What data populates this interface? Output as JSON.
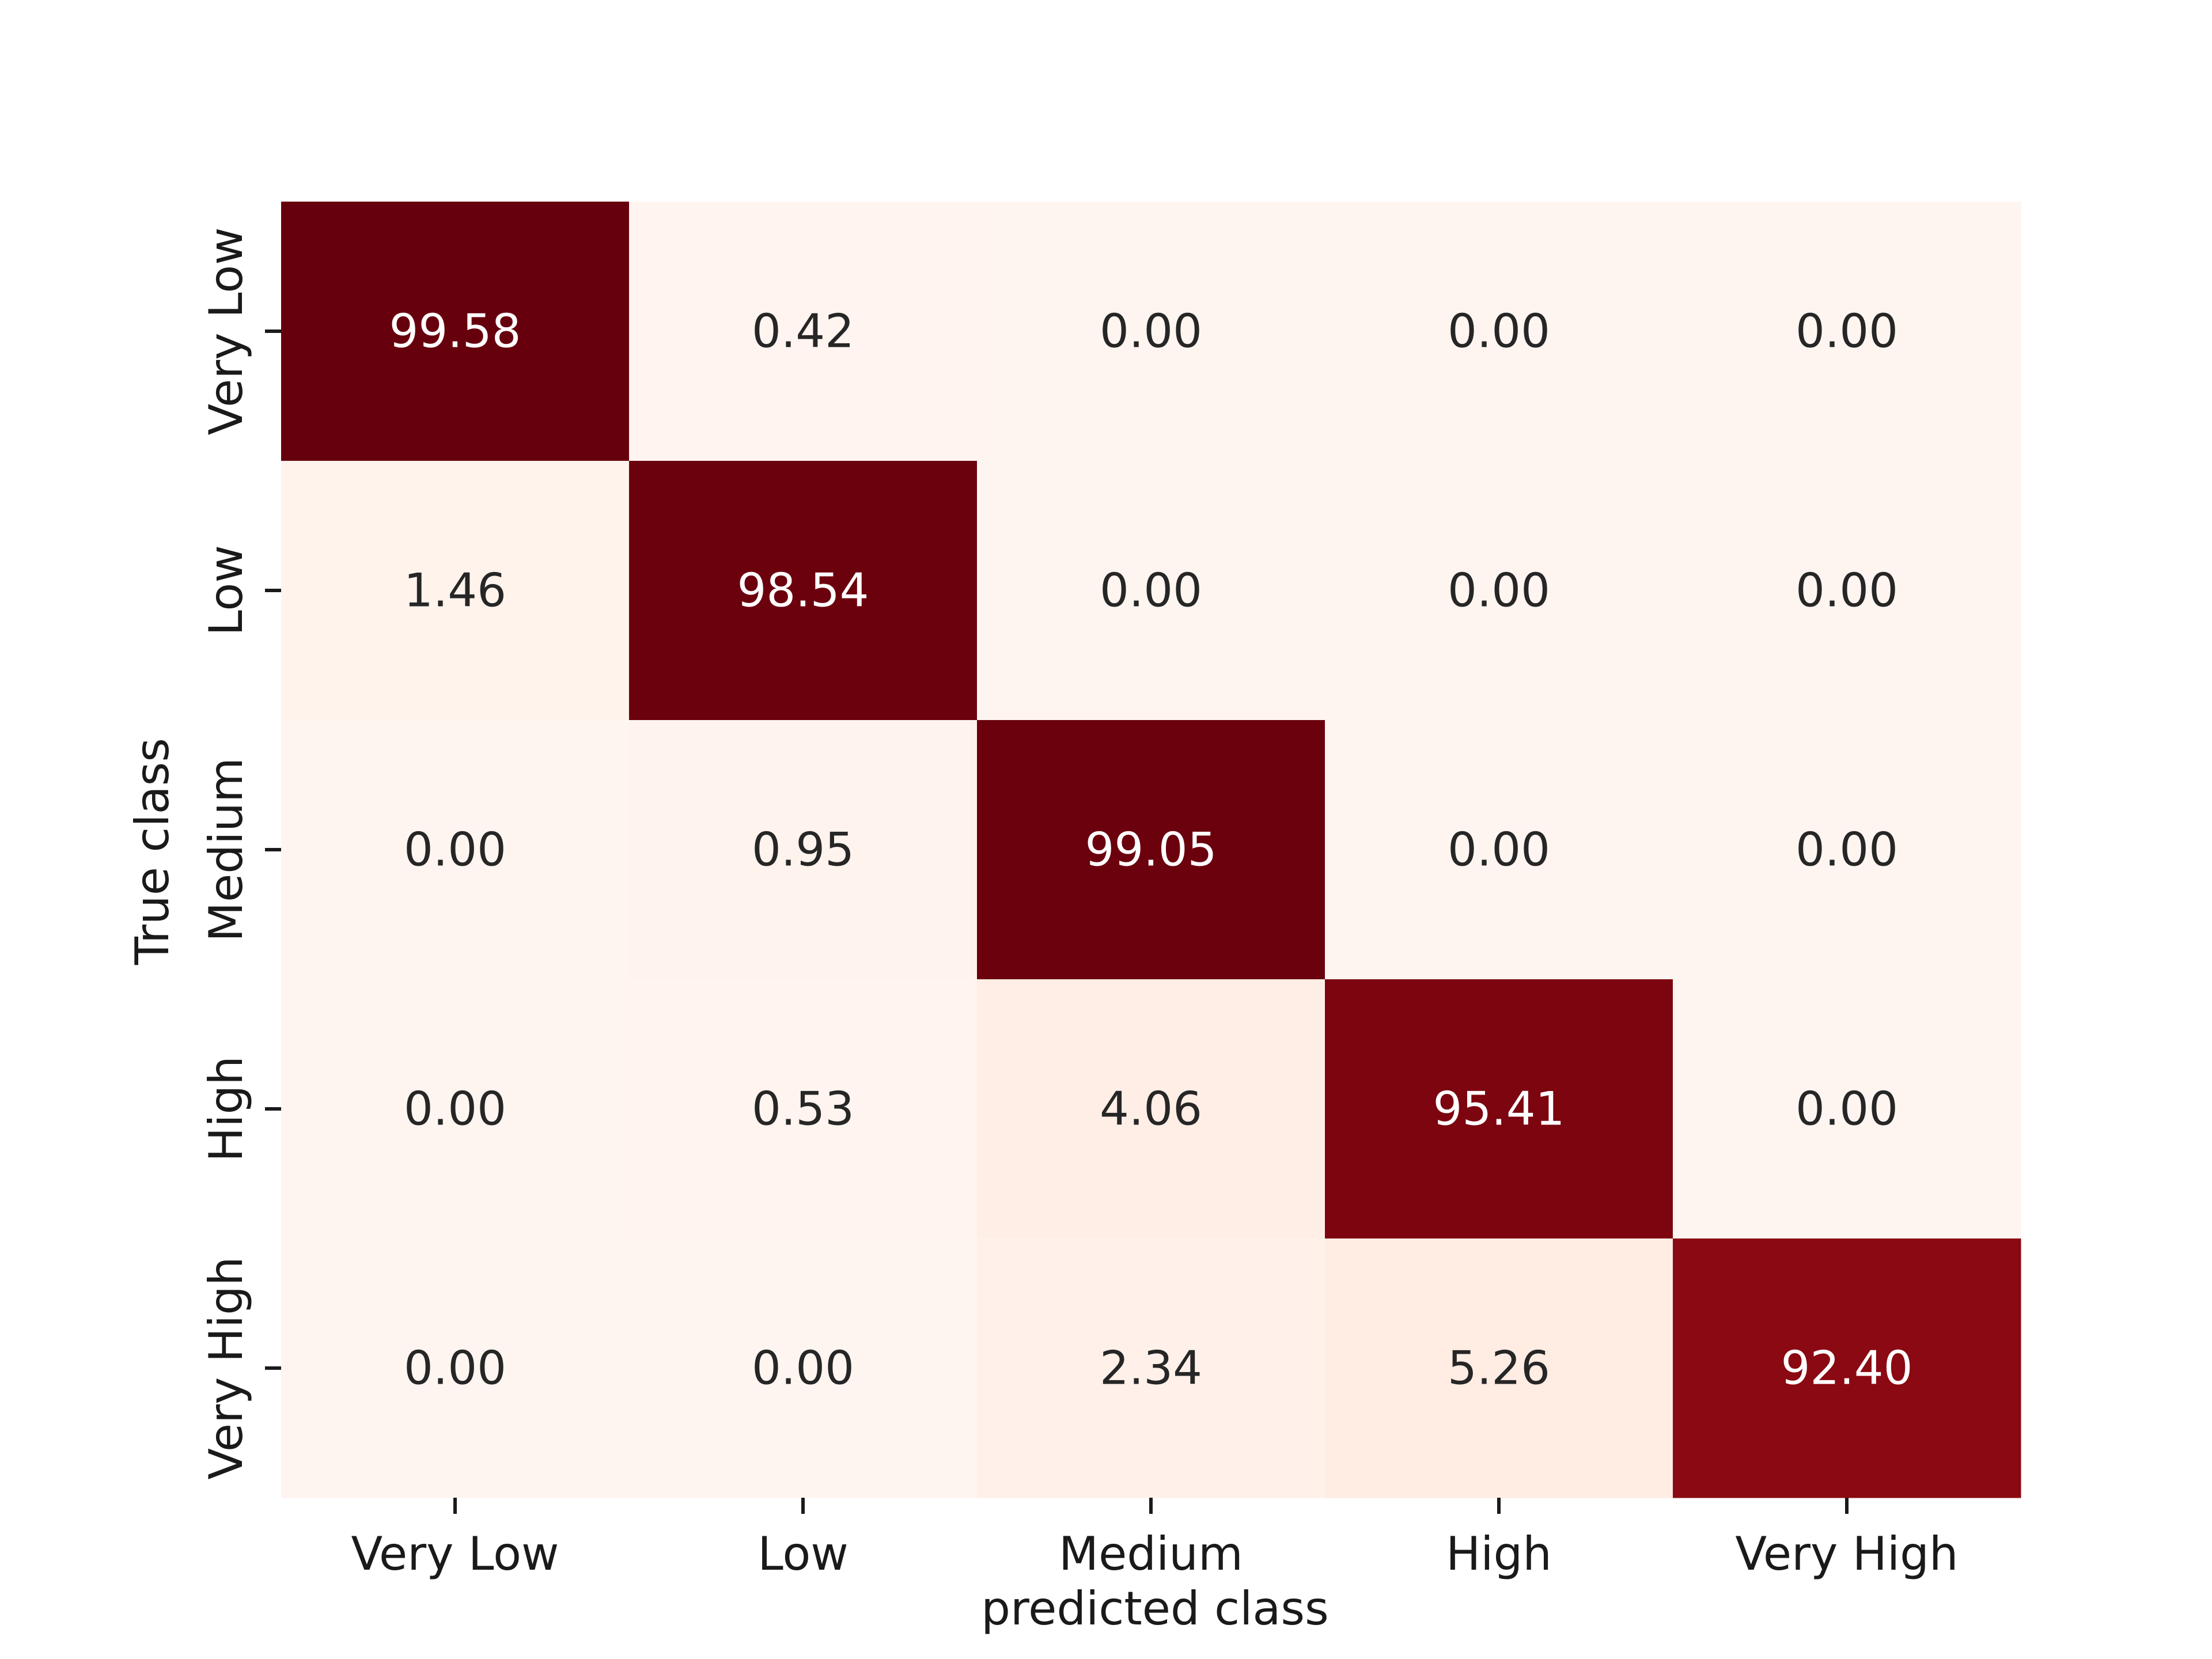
{
  "chart_data": {
    "type": "heatmap",
    "title": "",
    "xlabel": "predicted class",
    "ylabel": "True class",
    "x_categories": [
      "Very Low",
      "Low",
      "Medium",
      "High",
      "Very High"
    ],
    "y_categories": [
      "Very Low",
      "Low",
      "Medium",
      "High",
      "Very High"
    ],
    "values": [
      [
        99.58,
        0.42,
        0.0,
        0.0,
        0.0
      ],
      [
        1.46,
        98.54,
        0.0,
        0.0,
        0.0
      ],
      [
        0.0,
        0.95,
        99.05,
        0.0,
        0.0
      ],
      [
        0.0,
        0.53,
        4.06,
        95.41,
        0.0
      ],
      [
        0.0,
        0.0,
        2.34,
        5.26,
        92.4
      ]
    ],
    "value_format": "0.00",
    "colormap": "Reds",
    "color_low": "#fff5f0",
    "color_high": "#67000d",
    "colorbar": false,
    "grid": false
  }
}
